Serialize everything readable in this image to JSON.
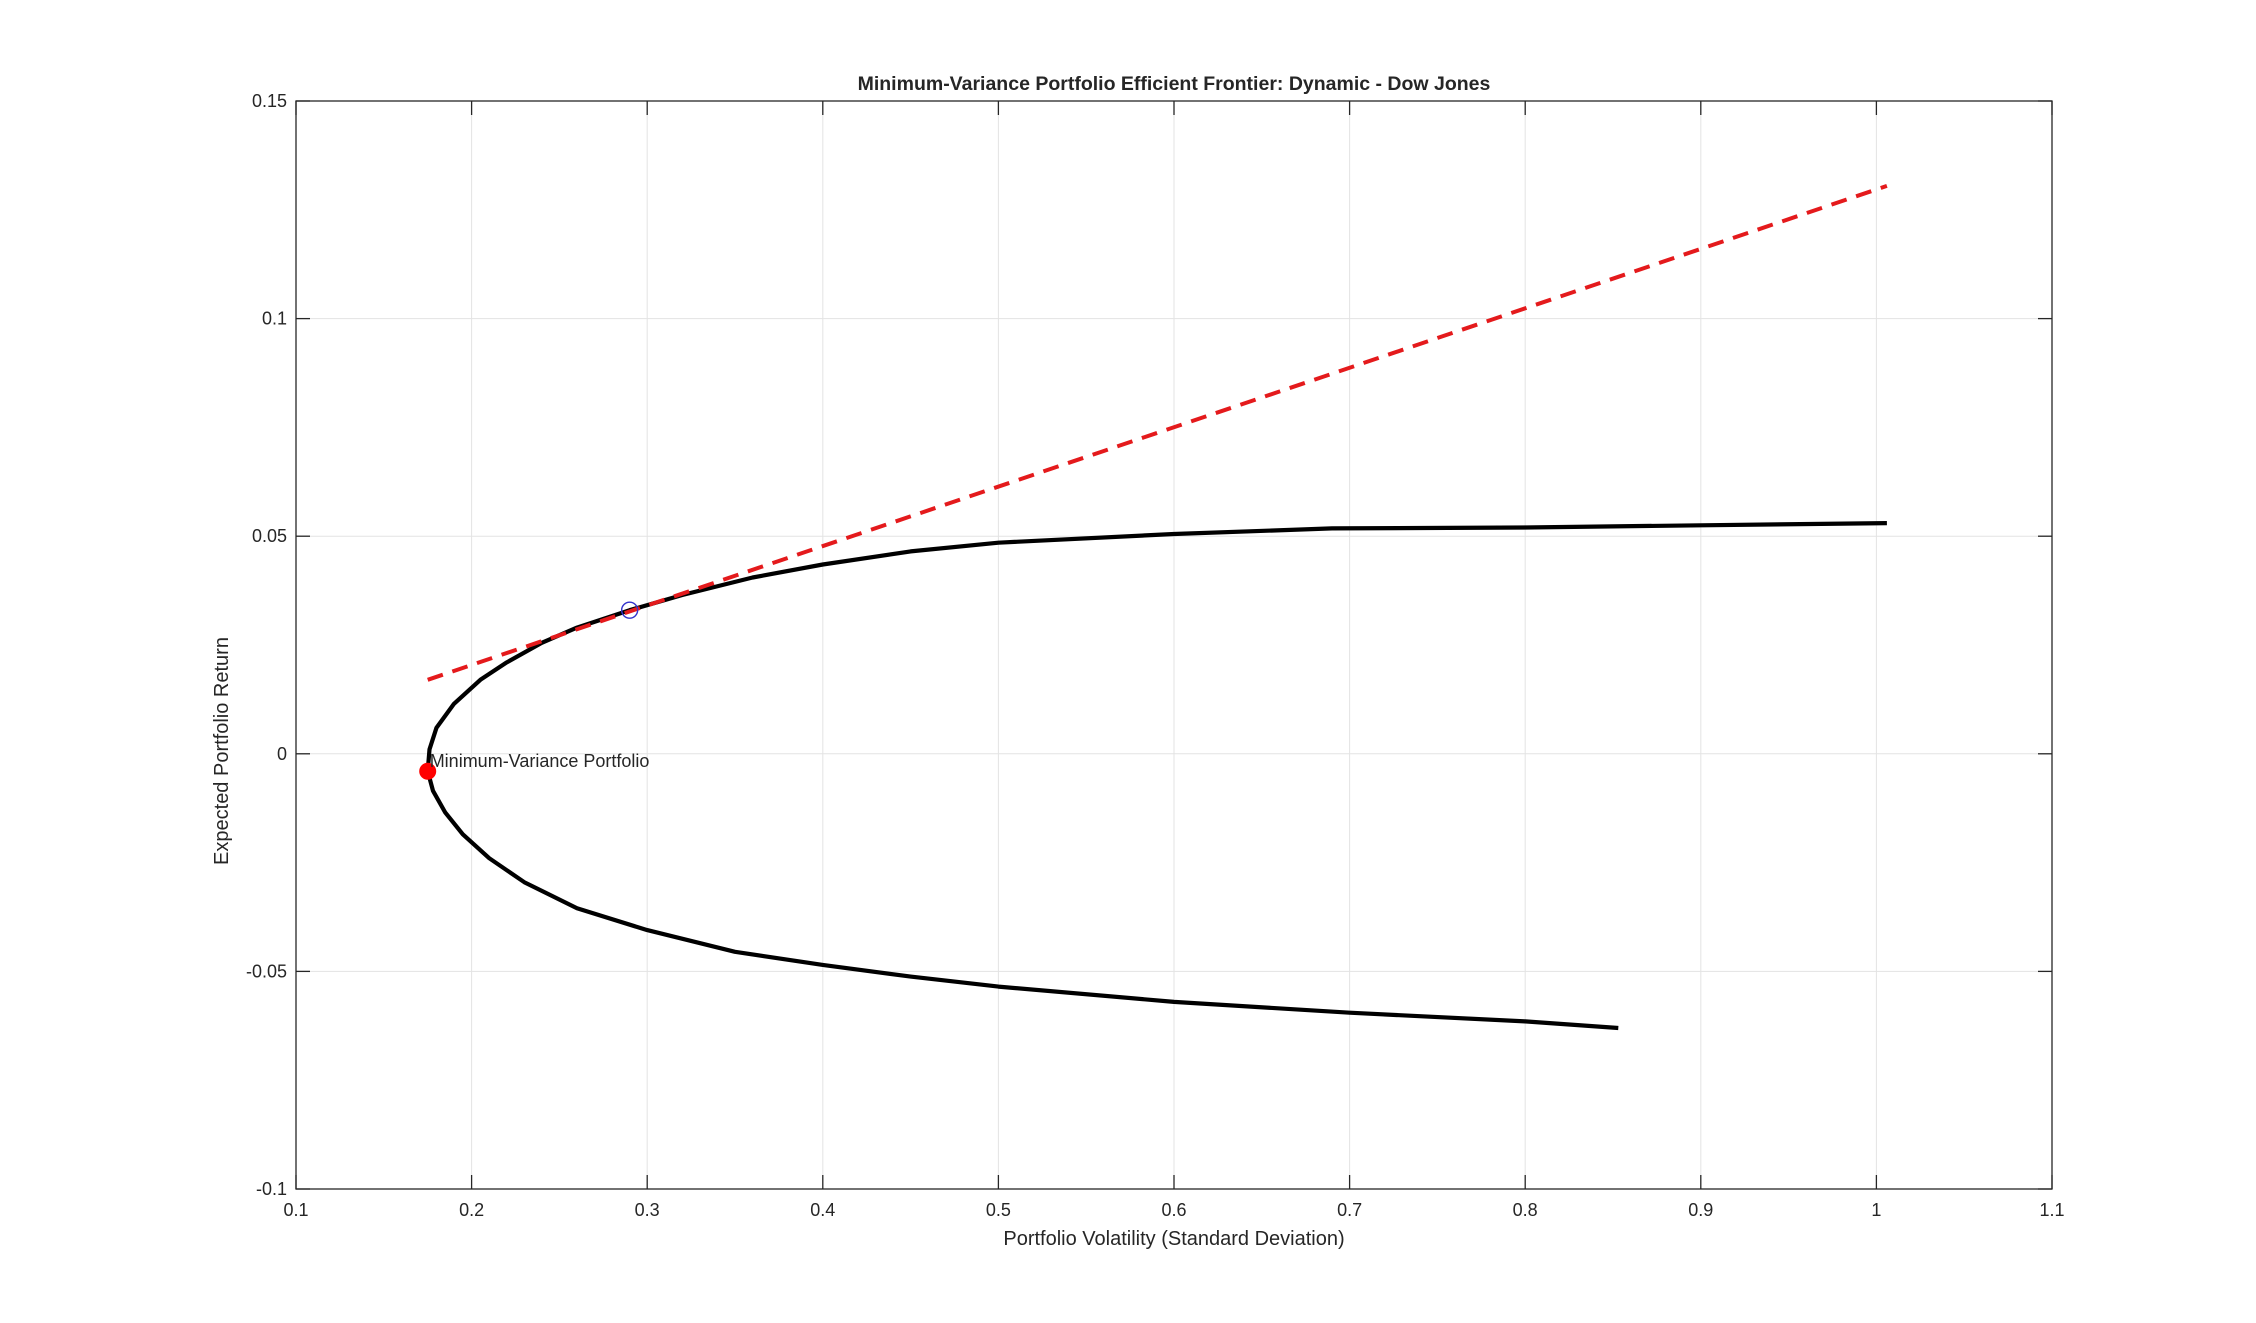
{
  "chart_data": {
    "type": "line",
    "title": "Minimum-Variance Portfolio Efficient Frontier: Dynamic - Dow Jones",
    "xlabel": "Portfolio Volatility (Standard Deviation)",
    "ylabel": "Expected Portfolio Return",
    "xlim": [
      0.1,
      1.1
    ],
    "ylim": [
      -0.1,
      0.15
    ],
    "xticks": [
      0.1,
      0.2,
      0.3,
      0.4,
      0.5,
      0.6,
      0.7,
      0.8,
      0.9,
      1.0,
      1.1
    ],
    "xtick_labels": [
      "0.1",
      "0.2",
      "0.3",
      "0.4",
      "0.5",
      "0.6",
      "0.7",
      "0.8",
      "0.9",
      "1",
      "1.1"
    ],
    "yticks": [
      -0.1,
      -0.05,
      0,
      0.05,
      0.1,
      0.15
    ],
    "ytick_labels": [
      "-0.1",
      "-0.05",
      "0",
      "0.05",
      "0.1",
      "0.15"
    ],
    "grid": true,
    "legend": "none",
    "series": [
      {
        "style": "solid",
        "color": "#000000",
        "x": [
          0.853,
          0.8,
          0.7,
          0.6,
          0.5,
          0.45,
          0.4,
          0.35,
          0.3,
          0.26,
          0.23,
          0.21,
          0.195,
          0.185,
          0.178,
          0.175,
          0.176,
          0.18,
          0.19,
          0.205,
          0.22,
          0.24,
          0.26,
          0.29,
          0.32,
          0.36,
          0.4,
          0.45,
          0.5,
          0.6,
          0.69,
          0.8,
          0.9,
          1.006
        ],
        "y": [
          -0.063,
          -0.0615,
          -0.0595,
          -0.057,
          -0.0535,
          -0.0512,
          -0.0485,
          -0.0455,
          -0.0405,
          -0.0355,
          -0.0295,
          -0.024,
          -0.0185,
          -0.0135,
          -0.0085,
          -0.004,
          0.001,
          0.006,
          0.0115,
          0.017,
          0.021,
          0.0255,
          0.029,
          0.033,
          0.0365,
          0.0405,
          0.0435,
          0.0465,
          0.0485,
          0.0505,
          0.0518,
          0.052,
          0.0525,
          0.053
        ]
      },
      {
        "style": "dashed",
        "color": "#e41a1c",
        "x": [
          0.175,
          1.006
        ],
        "y": [
          0.017,
          0.1305
        ]
      }
    ],
    "markers": [
      {
        "x": 0.175,
        "y": -0.004,
        "style": "filled-circle",
        "color": "#ff0000",
        "label": "Minimum-Variance Portfolio"
      },
      {
        "x": 0.29,
        "y": 0.033,
        "style": "open-circle",
        "color": "#3333cc",
        "label": ""
      }
    ]
  }
}
